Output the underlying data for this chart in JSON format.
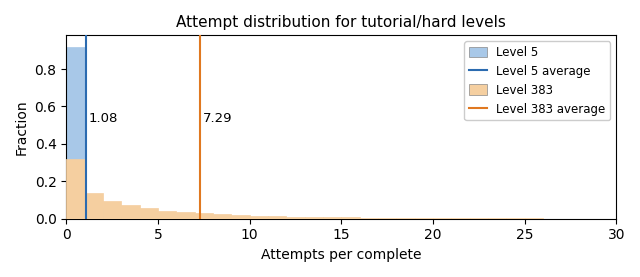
{
  "title": "Attempt distribution for tutorial/hard levels",
  "xlabel": "Attempts per complete",
  "ylabel": "Fraction",
  "xlim": [
    0,
    30
  ],
  "ylim": [
    0,
    0.98
  ],
  "level5_avg": 1.08,
  "level383_avg": 7.29,
  "level5_color": "#a8c8e8",
  "level383_color": "#f5cfa0",
  "level5_edge_color": "#a8c8e8",
  "level383_edge_color": "#f5cfa0",
  "level5_line_color": "#2b6bb0",
  "level383_line_color": "#e07820",
  "annotation_level5": "1.08",
  "annotation_level383": "7.29",
  "bins": [
    0,
    1,
    2,
    3,
    4,
    5,
    6,
    7,
    8,
    9,
    10,
    11,
    12,
    13,
    14,
    15,
    16,
    17,
    18,
    19,
    20,
    21,
    22,
    23,
    24,
    25,
    26,
    27,
    28,
    29,
    30
  ],
  "level5_heights": [
    0.92,
    0.055,
    0.015,
    0.006,
    0.003,
    0.001,
    0.001,
    0.001,
    0.0,
    0.0,
    0.0,
    0.0,
    0.0,
    0.0,
    0.0,
    0.0,
    0.0,
    0.0,
    0.0,
    0.0,
    0.0,
    0.0,
    0.0,
    0.0,
    0.0,
    0.0,
    0.0,
    0.0,
    0.0,
    0.0
  ],
  "level383_heights": [
    0.32,
    0.135,
    0.095,
    0.072,
    0.055,
    0.043,
    0.035,
    0.028,
    0.023,
    0.019,
    0.016,
    0.013,
    0.011,
    0.009,
    0.008,
    0.007,
    0.006,
    0.005,
    0.004,
    0.004,
    0.003,
    0.003,
    0.002,
    0.002,
    0.002,
    0.002,
    0.001,
    0.001,
    0.001,
    0.001
  ]
}
